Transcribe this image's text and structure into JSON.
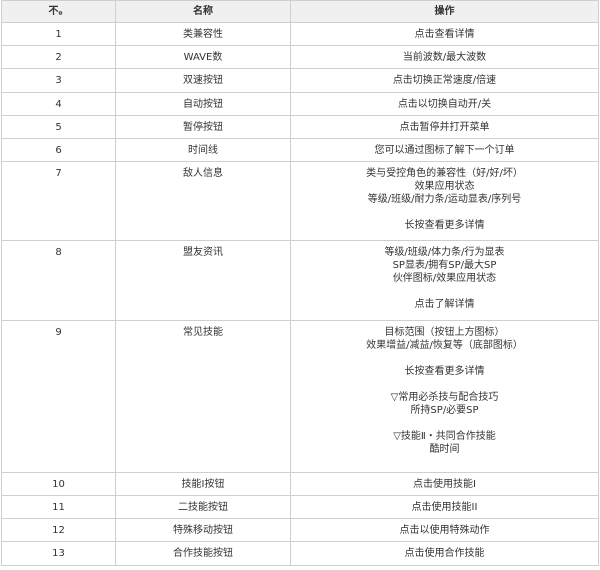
{
  "table": {
    "header": [
      "不。",
      "名称",
      "操作"
    ],
    "rows": [
      [
        1,
        "类兼容性",
        [
          [
            "点击查看详情"
          ]
        ]
      ],
      [
        2,
        "WAVE数",
        [
          [
            "当前波数/最大波数"
          ]
        ]
      ],
      [
        3,
        "双速按钮",
        [
          [
            "点击切换正常速度/倍速"
          ]
        ]
      ],
      [
        4,
        "自动按钮",
        [
          [
            "点击以切换自动开/关"
          ]
        ]
      ],
      [
        5,
        "暂停按钮",
        [
          [
            "点击暂停并打开菜单"
          ]
        ]
      ],
      [
        6,
        "时间线",
        [
          [
            "您可以通过图标了解下一个订单"
          ]
        ]
      ],
      [
        7,
        "敌人信息",
        [
          [
            "类与受控角色的兼容性（好/好/坏）",
            "效果应用状态",
            "等级/班级/耐力条/运动显表/序列号"
          ],
          [
            "长按查看更多详情"
          ]
        ]
      ],
      [
        8,
        "盟友资讯",
        [
          [
            "等级/班级/体力条/行为显表",
            "SP显表/拥有SP/最大SP",
            "伙伴图标/效果应用状态"
          ],
          [
            "点击了解详情"
          ]
        ]
      ],
      [
        9,
        "常见技能",
        [
          [
            "目标范围（按钮上方图标）",
            "效果增益/减益/恢复等（底部图标）"
          ],
          [
            "长按查看更多详情"
          ],
          [
            "▽常用必杀技与配合技巧",
            "所持SP/必要SP"
          ],
          [
            "▽技能Ⅱ・共同合作技能",
            "酷时间"
          ]
        ]
      ],
      [
        10,
        "技能Ⅰ按钮",
        [
          [
            "点击使用技能Ⅰ"
          ]
        ]
      ],
      [
        11,
        "二技能按钮",
        [
          [
            "点击使用技能II"
          ]
        ]
      ],
      [
        12,
        "特殊移动按钮",
        [
          [
            "点击以使用特殊动作"
          ]
        ]
      ],
      [
        13,
        "合作技能按钮",
        [
          [
            "点击使用合作技能"
          ]
        ]
      ]
    ]
  }
}
